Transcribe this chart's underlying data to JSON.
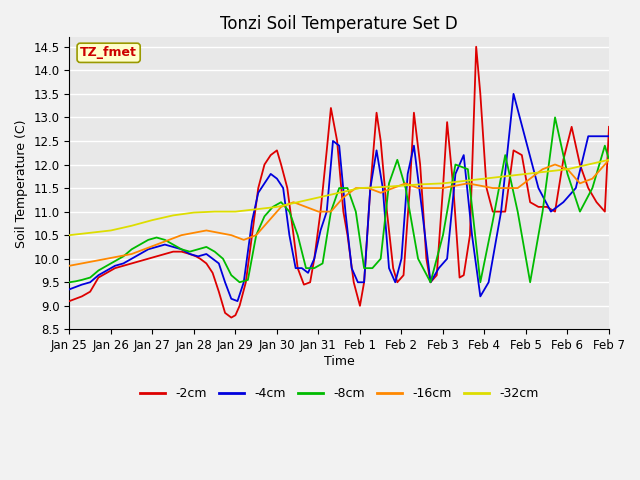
{
  "title": "Tonzi Soil Temperature Set D",
  "xlabel": "Time",
  "ylabel": "Soil Temperature (C)",
  "ylim": [
    8.5,
    14.7
  ],
  "xlim": [
    0,
    13
  ],
  "xtick_labels": [
    "Jan 25",
    "Jan 26",
    "Jan 27",
    "Jan 28",
    "Jan 29",
    "Jan 30",
    "Jan 31",
    "Feb 1",
    "Feb 2",
    "Feb 3",
    "Feb 4",
    "Feb 5",
    "Feb 6",
    "Feb 7"
  ],
  "series_labels": [
    "-2cm",
    "-4cm",
    "-8cm",
    "-16cm",
    "-32cm"
  ],
  "series_colors": [
    "#dd0000",
    "#0000dd",
    "#00bb00",
    "#ff8800",
    "#dddd00"
  ],
  "annotation_text": "TZ_fmet",
  "annotation_color": "#cc0000",
  "annotation_bg": "#ffffcc",
  "background_color": "#e8e8e8",
  "grid_color": "#ffffff",
  "title_fontsize": 12,
  "label_fontsize": 9,
  "tick_fontsize": 8.5,
  "legend_fontsize": 9,
  "x_2cm": [
    0,
    0.15,
    0.3,
    0.5,
    0.7,
    0.9,
    1.1,
    1.3,
    1.5,
    1.7,
    1.9,
    2.1,
    2.3,
    2.5,
    2.7,
    2.9,
    3.05,
    3.15,
    3.3,
    3.45,
    3.6,
    3.75,
    3.9,
    4.0,
    4.1,
    4.25,
    4.4,
    4.55,
    4.7,
    4.85,
    5.0,
    5.1,
    5.25,
    5.4,
    5.5,
    5.65,
    5.8,
    5.9,
    6.05,
    6.2,
    6.3,
    6.45,
    6.6,
    6.7,
    6.85,
    7.0,
    7.1,
    7.25,
    7.4,
    7.5,
    7.65,
    7.8,
    7.9,
    8.05,
    8.2,
    8.3,
    8.45,
    8.6,
    8.7,
    8.85,
    9.0,
    9.1,
    9.25,
    9.4,
    9.5,
    9.65,
    9.8,
    9.9,
    10.05,
    10.2,
    10.3,
    10.5,
    10.7,
    10.9,
    11.1,
    11.3,
    11.5,
    11.7,
    11.9,
    12.1,
    12.3,
    12.5,
    12.7,
    12.9,
    13.0
  ],
  "y_2cm": [
    9.1,
    9.15,
    9.2,
    9.3,
    9.6,
    9.7,
    9.8,
    9.85,
    9.9,
    9.95,
    10.0,
    10.05,
    10.1,
    10.15,
    10.15,
    10.1,
    10.05,
    10.0,
    9.9,
    9.7,
    9.3,
    8.85,
    8.75,
    8.8,
    9.0,
    9.5,
    10.5,
    11.5,
    12.0,
    12.2,
    12.3,
    12.0,
    11.5,
    10.5,
    9.8,
    9.45,
    9.5,
    10.0,
    11.0,
    12.3,
    13.2,
    12.5,
    11.0,
    10.5,
    9.5,
    9.0,
    9.5,
    11.5,
    13.1,
    12.5,
    11.0,
    9.8,
    9.5,
    9.65,
    11.5,
    13.1,
    12.0,
    10.0,
    9.5,
    9.65,
    11.5,
    12.9,
    11.5,
    9.6,
    9.65,
    10.5,
    14.5,
    13.5,
    11.5,
    11.0,
    11.0,
    11.0,
    12.3,
    12.2,
    11.2,
    11.1,
    11.1,
    11.0,
    12.1,
    12.8,
    12.0,
    11.5,
    11.2,
    11.0,
    12.8
  ],
  "x_4cm": [
    0,
    0.15,
    0.3,
    0.5,
    0.7,
    0.9,
    1.1,
    1.3,
    1.5,
    1.7,
    1.9,
    2.1,
    2.3,
    2.5,
    2.7,
    2.9,
    3.1,
    3.3,
    3.45,
    3.6,
    3.75,
    3.9,
    4.05,
    4.2,
    4.4,
    4.55,
    4.7,
    4.85,
    5.0,
    5.15,
    5.3,
    5.45,
    5.6,
    5.75,
    5.9,
    6.05,
    6.2,
    6.35,
    6.5,
    6.65,
    6.8,
    6.95,
    7.1,
    7.25,
    7.4,
    7.55,
    7.7,
    7.85,
    8.0,
    8.15,
    8.3,
    8.5,
    8.7,
    8.9,
    9.1,
    9.3,
    9.5,
    9.7,
    9.9,
    10.1,
    10.4,
    10.7,
    11.0,
    11.3,
    11.6,
    11.9,
    12.2,
    12.5,
    12.8,
    13.0
  ],
  "y_4cm": [
    9.35,
    9.4,
    9.45,
    9.5,
    9.65,
    9.75,
    9.85,
    9.9,
    10.0,
    10.1,
    10.2,
    10.25,
    10.3,
    10.25,
    10.2,
    10.1,
    10.05,
    10.1,
    10.0,
    9.9,
    9.5,
    9.15,
    9.1,
    9.5,
    10.8,
    11.4,
    11.6,
    11.8,
    11.7,
    11.5,
    10.5,
    9.8,
    9.8,
    9.7,
    10.0,
    10.6,
    11.0,
    12.5,
    12.4,
    11.0,
    9.8,
    9.5,
    9.5,
    11.5,
    12.3,
    11.5,
    9.8,
    9.5,
    10.0,
    11.8,
    12.4,
    11.0,
    9.5,
    9.8,
    10.0,
    11.8,
    12.2,
    10.5,
    9.2,
    9.5,
    11.0,
    13.5,
    12.5,
    11.5,
    11.0,
    11.2,
    11.5,
    12.6,
    12.6,
    12.6
  ],
  "x_8cm": [
    0,
    0.15,
    0.3,
    0.5,
    0.7,
    0.9,
    1.1,
    1.3,
    1.5,
    1.7,
    1.9,
    2.1,
    2.3,
    2.5,
    2.7,
    2.9,
    3.1,
    3.3,
    3.5,
    3.7,
    3.9,
    4.1,
    4.3,
    4.5,
    4.7,
    4.9,
    5.1,
    5.3,
    5.5,
    5.7,
    5.9,
    6.1,
    6.3,
    6.5,
    6.7,
    6.9,
    7.1,
    7.3,
    7.5,
    7.7,
    7.9,
    8.1,
    8.4,
    8.7,
    9.0,
    9.3,
    9.6,
    9.9,
    10.2,
    10.5,
    10.8,
    11.1,
    11.4,
    11.7,
    12.0,
    12.3,
    12.6,
    12.9,
    13.0
  ],
  "y_8cm": [
    9.5,
    9.52,
    9.55,
    9.6,
    9.75,
    9.85,
    9.95,
    10.05,
    10.2,
    10.3,
    10.4,
    10.45,
    10.4,
    10.3,
    10.2,
    10.15,
    10.2,
    10.25,
    10.15,
    10.0,
    9.65,
    9.5,
    9.55,
    10.5,
    10.9,
    11.1,
    11.2,
    11.0,
    10.5,
    9.8,
    9.8,
    9.9,
    11.0,
    11.5,
    11.5,
    11.0,
    9.8,
    9.8,
    10.0,
    11.6,
    12.1,
    11.5,
    10.0,
    9.5,
    10.5,
    12.0,
    11.9,
    9.5,
    10.8,
    12.2,
    11.0,
    9.5,
    11.0,
    13.0,
    11.8,
    11.0,
    11.5,
    12.4,
    12.1
  ],
  "x_16cm": [
    0,
    0.3,
    0.6,
    0.9,
    1.2,
    1.5,
    1.8,
    2.1,
    2.4,
    2.7,
    3.0,
    3.3,
    3.6,
    3.9,
    4.2,
    4.5,
    4.8,
    5.1,
    5.4,
    5.7,
    6.0,
    6.3,
    6.6,
    6.9,
    7.2,
    7.5,
    7.8,
    8.1,
    8.4,
    8.7,
    9.0,
    9.3,
    9.6,
    9.9,
    10.2,
    10.5,
    10.8,
    11.1,
    11.4,
    11.7,
    12.0,
    12.3,
    12.6,
    12.9,
    13.0
  ],
  "y_16cm": [
    9.85,
    9.9,
    9.95,
    10.0,
    10.05,
    10.1,
    10.2,
    10.3,
    10.4,
    10.5,
    10.55,
    10.6,
    10.55,
    10.5,
    10.4,
    10.5,
    10.8,
    11.1,
    11.2,
    11.1,
    11.0,
    11.0,
    11.3,
    11.5,
    11.5,
    11.4,
    11.5,
    11.6,
    11.5,
    11.5,
    11.5,
    11.55,
    11.6,
    11.55,
    11.5,
    11.5,
    11.5,
    11.7,
    11.9,
    12.0,
    11.9,
    11.6,
    11.7,
    12.0,
    12.1
  ],
  "x_32cm": [
    0,
    0.5,
    1.0,
    1.5,
    2.0,
    2.5,
    3.0,
    3.5,
    4.0,
    4.5,
    5.0,
    5.5,
    6.0,
    6.5,
    7.0,
    7.5,
    8.0,
    8.5,
    9.0,
    9.5,
    10.0,
    10.5,
    11.0,
    11.5,
    12.0,
    12.5,
    13.0
  ],
  "y_32cm": [
    10.5,
    10.55,
    10.6,
    10.7,
    10.82,
    10.92,
    10.98,
    11.0,
    11.0,
    11.05,
    11.1,
    11.2,
    11.3,
    11.4,
    11.5,
    11.52,
    11.55,
    11.58,
    11.6,
    11.65,
    11.7,
    11.75,
    11.8,
    11.85,
    11.9,
    12.0,
    12.1
  ]
}
